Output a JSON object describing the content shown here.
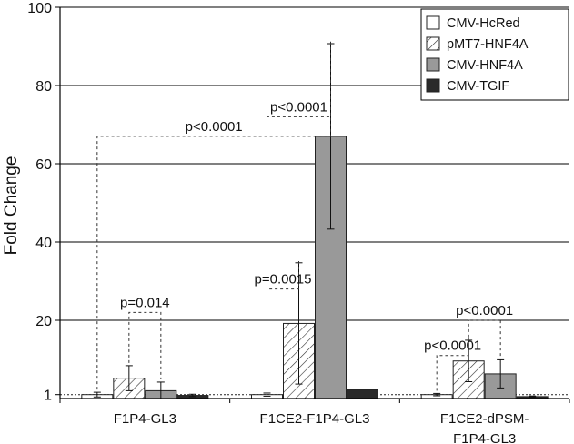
{
  "chart_data": {
    "type": "bar",
    "ylabel": "Fold Change",
    "ylim": [
      0,
      100
    ],
    "yticks": [
      1,
      20,
      40,
      60,
      80,
      100
    ],
    "grid": true,
    "reference_line": 1,
    "legend_position": "top-right",
    "categories": [
      {
        "lines": [
          "F1P4-GL3"
        ]
      },
      {
        "lines": [
          "F1CE2-F1P4-GL3"
        ]
      },
      {
        "lines": [
          "F1CE2-dPSM-",
          "F1P4-GL3"
        ]
      }
    ],
    "series": [
      {
        "name": "CMV-HcRed",
        "fill": "white",
        "color": "#ffffff",
        "values": [
          1.0,
          1.0,
          1.0
        ],
        "errors": [
          0.6,
          0.4,
          0.3
        ]
      },
      {
        "name": "pMT7-HNF4A",
        "fill": "hatch",
        "color": "#ffffff",
        "values": [
          5.2,
          19.2,
          9.6
        ],
        "errors": [
          3.2,
          15.5,
          5.3
        ]
      },
      {
        "name": "CMV-HNF4A",
        "fill": "gray",
        "color": "#999999",
        "values": [
          2.0,
          67.0,
          6.3
        ],
        "errors": [
          2.2,
          23.7,
          3.6
        ]
      },
      {
        "name": "CMV-TGIF",
        "fill": "black",
        "color": "#2a2a2a",
        "values": [
          0.8,
          2.3,
          0.5
        ],
        "errors": [
          0.3,
          0.0,
          0.15
        ]
      }
    ],
    "annotations": [
      {
        "text": "p=0.014",
        "cat": 0,
        "from": 1,
        "to": 2,
        "y": 22
      },
      {
        "text": "p<0.0001",
        "cat": 0,
        "from": 0,
        "to": 2,
        "y": 67,
        "to_cat": 1
      },
      {
        "text": "p=0.0015",
        "cat": 1,
        "from": 0,
        "to": 1,
        "y": 28
      },
      {
        "text": "p<0.0001",
        "cat": 1,
        "from": 0,
        "to": 2,
        "y": 72
      },
      {
        "text": "p<0.0001",
        "cat": 2,
        "from": 0,
        "to": 1,
        "y": 11
      },
      {
        "text": "p<0.0001",
        "cat": 2,
        "from": 1,
        "to": 2,
        "y": 20
      }
    ]
  }
}
